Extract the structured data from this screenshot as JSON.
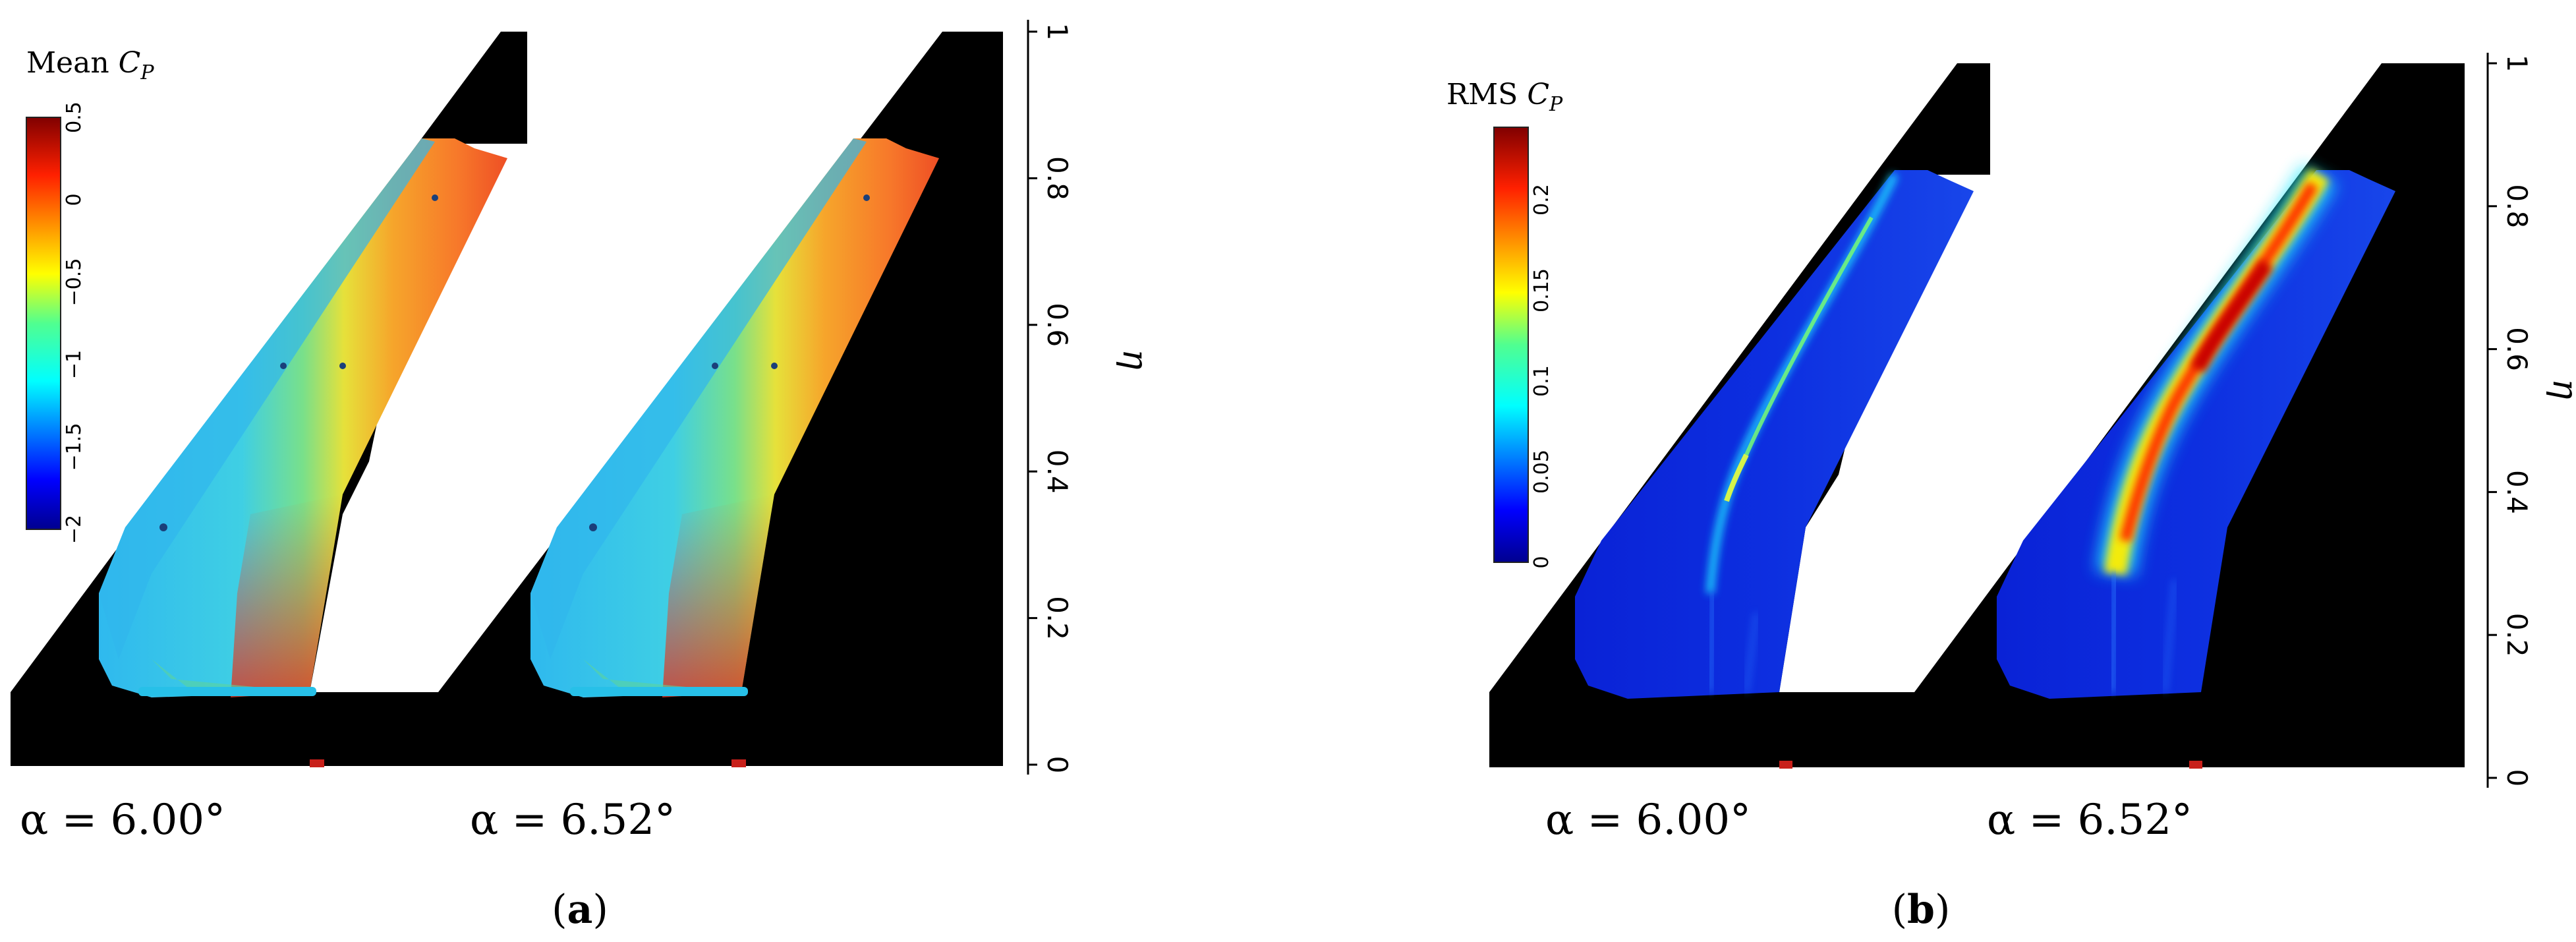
{
  "panels": [
    {
      "id": "a",
      "caption_open": "(",
      "caption_letter": "a",
      "caption_close": ")",
      "colorbar": {
        "title_prefix": "Mean ",
        "title_var": "C",
        "title_sub": "P",
        "ticks": [
          "0.5",
          "0",
          "−0.5",
          "−1",
          "−1.5",
          "−2"
        ],
        "min": -2,
        "max": 0.5
      },
      "cases": [
        {
          "label": "α = 6.00°"
        },
        {
          "label": "α = 6.52°"
        }
      ],
      "eta_axis": {
        "label": "η",
        "ticks": [
          "0",
          "0.2",
          "0.4",
          "0.6",
          "0.8",
          "1"
        ]
      }
    },
    {
      "id": "b",
      "caption_open": "(",
      "caption_letter": "b",
      "caption_close": ")",
      "colorbar": {
        "title_prefix": "RMS ",
        "title_var": "C",
        "title_sub": "P",
        "ticks": [
          "0.2",
          "0.15",
          "0.1",
          "0.05",
          "0"
        ],
        "min": 0,
        "max": 0.24
      },
      "cases": [
        {
          "label": "α = 6.00°"
        },
        {
          "label": "α = 6.52°"
        }
      ],
      "eta_axis": {
        "label": "η",
        "ticks": [
          "0",
          "0.2",
          "0.4",
          "0.6",
          "0.8",
          "1"
        ]
      }
    }
  ],
  "chart_data": [
    {
      "type": "heatmap",
      "title": "Mean C_P",
      "colorbar_range": [
        -2,
        0.5
      ],
      "colorbar_ticks": [
        0.5,
        0,
        -0.5,
        -1,
        -1.5,
        -2
      ],
      "y_axis_label": "η",
      "y_range": [
        0,
        1
      ],
      "y_ticks": [
        0,
        0.2,
        0.4,
        0.6,
        0.8,
        1
      ],
      "cases": [
        "α = 6.00°",
        "α = 6.52°"
      ],
      "colors": {
        "low": "#00008f",
        "mid": "#50dc9a",
        "high": "#d40000",
        "mask": "#000000"
      }
    },
    {
      "type": "heatmap",
      "title": "RMS C_P",
      "colorbar_range": [
        0,
        0.24
      ],
      "colorbar_ticks": [
        0.2,
        0.15,
        0.1,
        0.05,
        0
      ],
      "y_axis_label": "η",
      "y_range": [
        0,
        1
      ],
      "y_ticks": [
        0,
        0.2,
        0.4,
        0.6,
        0.8,
        1
      ],
      "cases": [
        "α = 6.00°",
        "α = 6.52°"
      ],
      "colors": {
        "low": "#00008f",
        "mid": "#50dc9a",
        "high": "#d40000",
        "mask": "#000000"
      }
    }
  ]
}
